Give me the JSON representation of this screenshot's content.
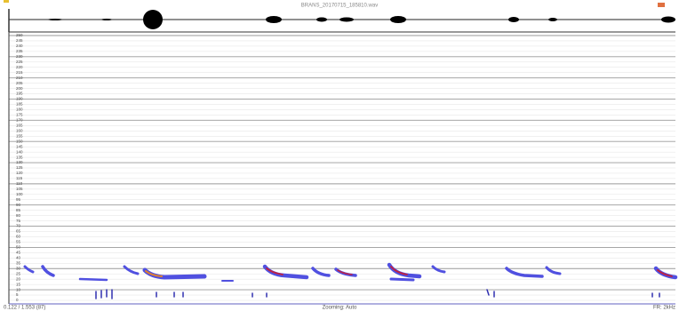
{
  "title": "BRANS_20170715_185810.wav",
  "frequency_axis": {
    "ticks": [
      250,
      245,
      240,
      235,
      230,
      225,
      220,
      215,
      210,
      205,
      200,
      195,
      190,
      185,
      180,
      175,
      170,
      165,
      160,
      155,
      150,
      145,
      140,
      135,
      130,
      125,
      120,
      115,
      110,
      105,
      100,
      95,
      90,
      85,
      80,
      75,
      70,
      65,
      60,
      55,
      50,
      45,
      40,
      35,
      30,
      25,
      20,
      15,
      10,
      5,
      0
    ]
  },
  "status": {
    "left": "0.122 / 1.553 (87)",
    "center": "Zooming: Auto",
    "right": "FR: 2kHz"
  }
}
